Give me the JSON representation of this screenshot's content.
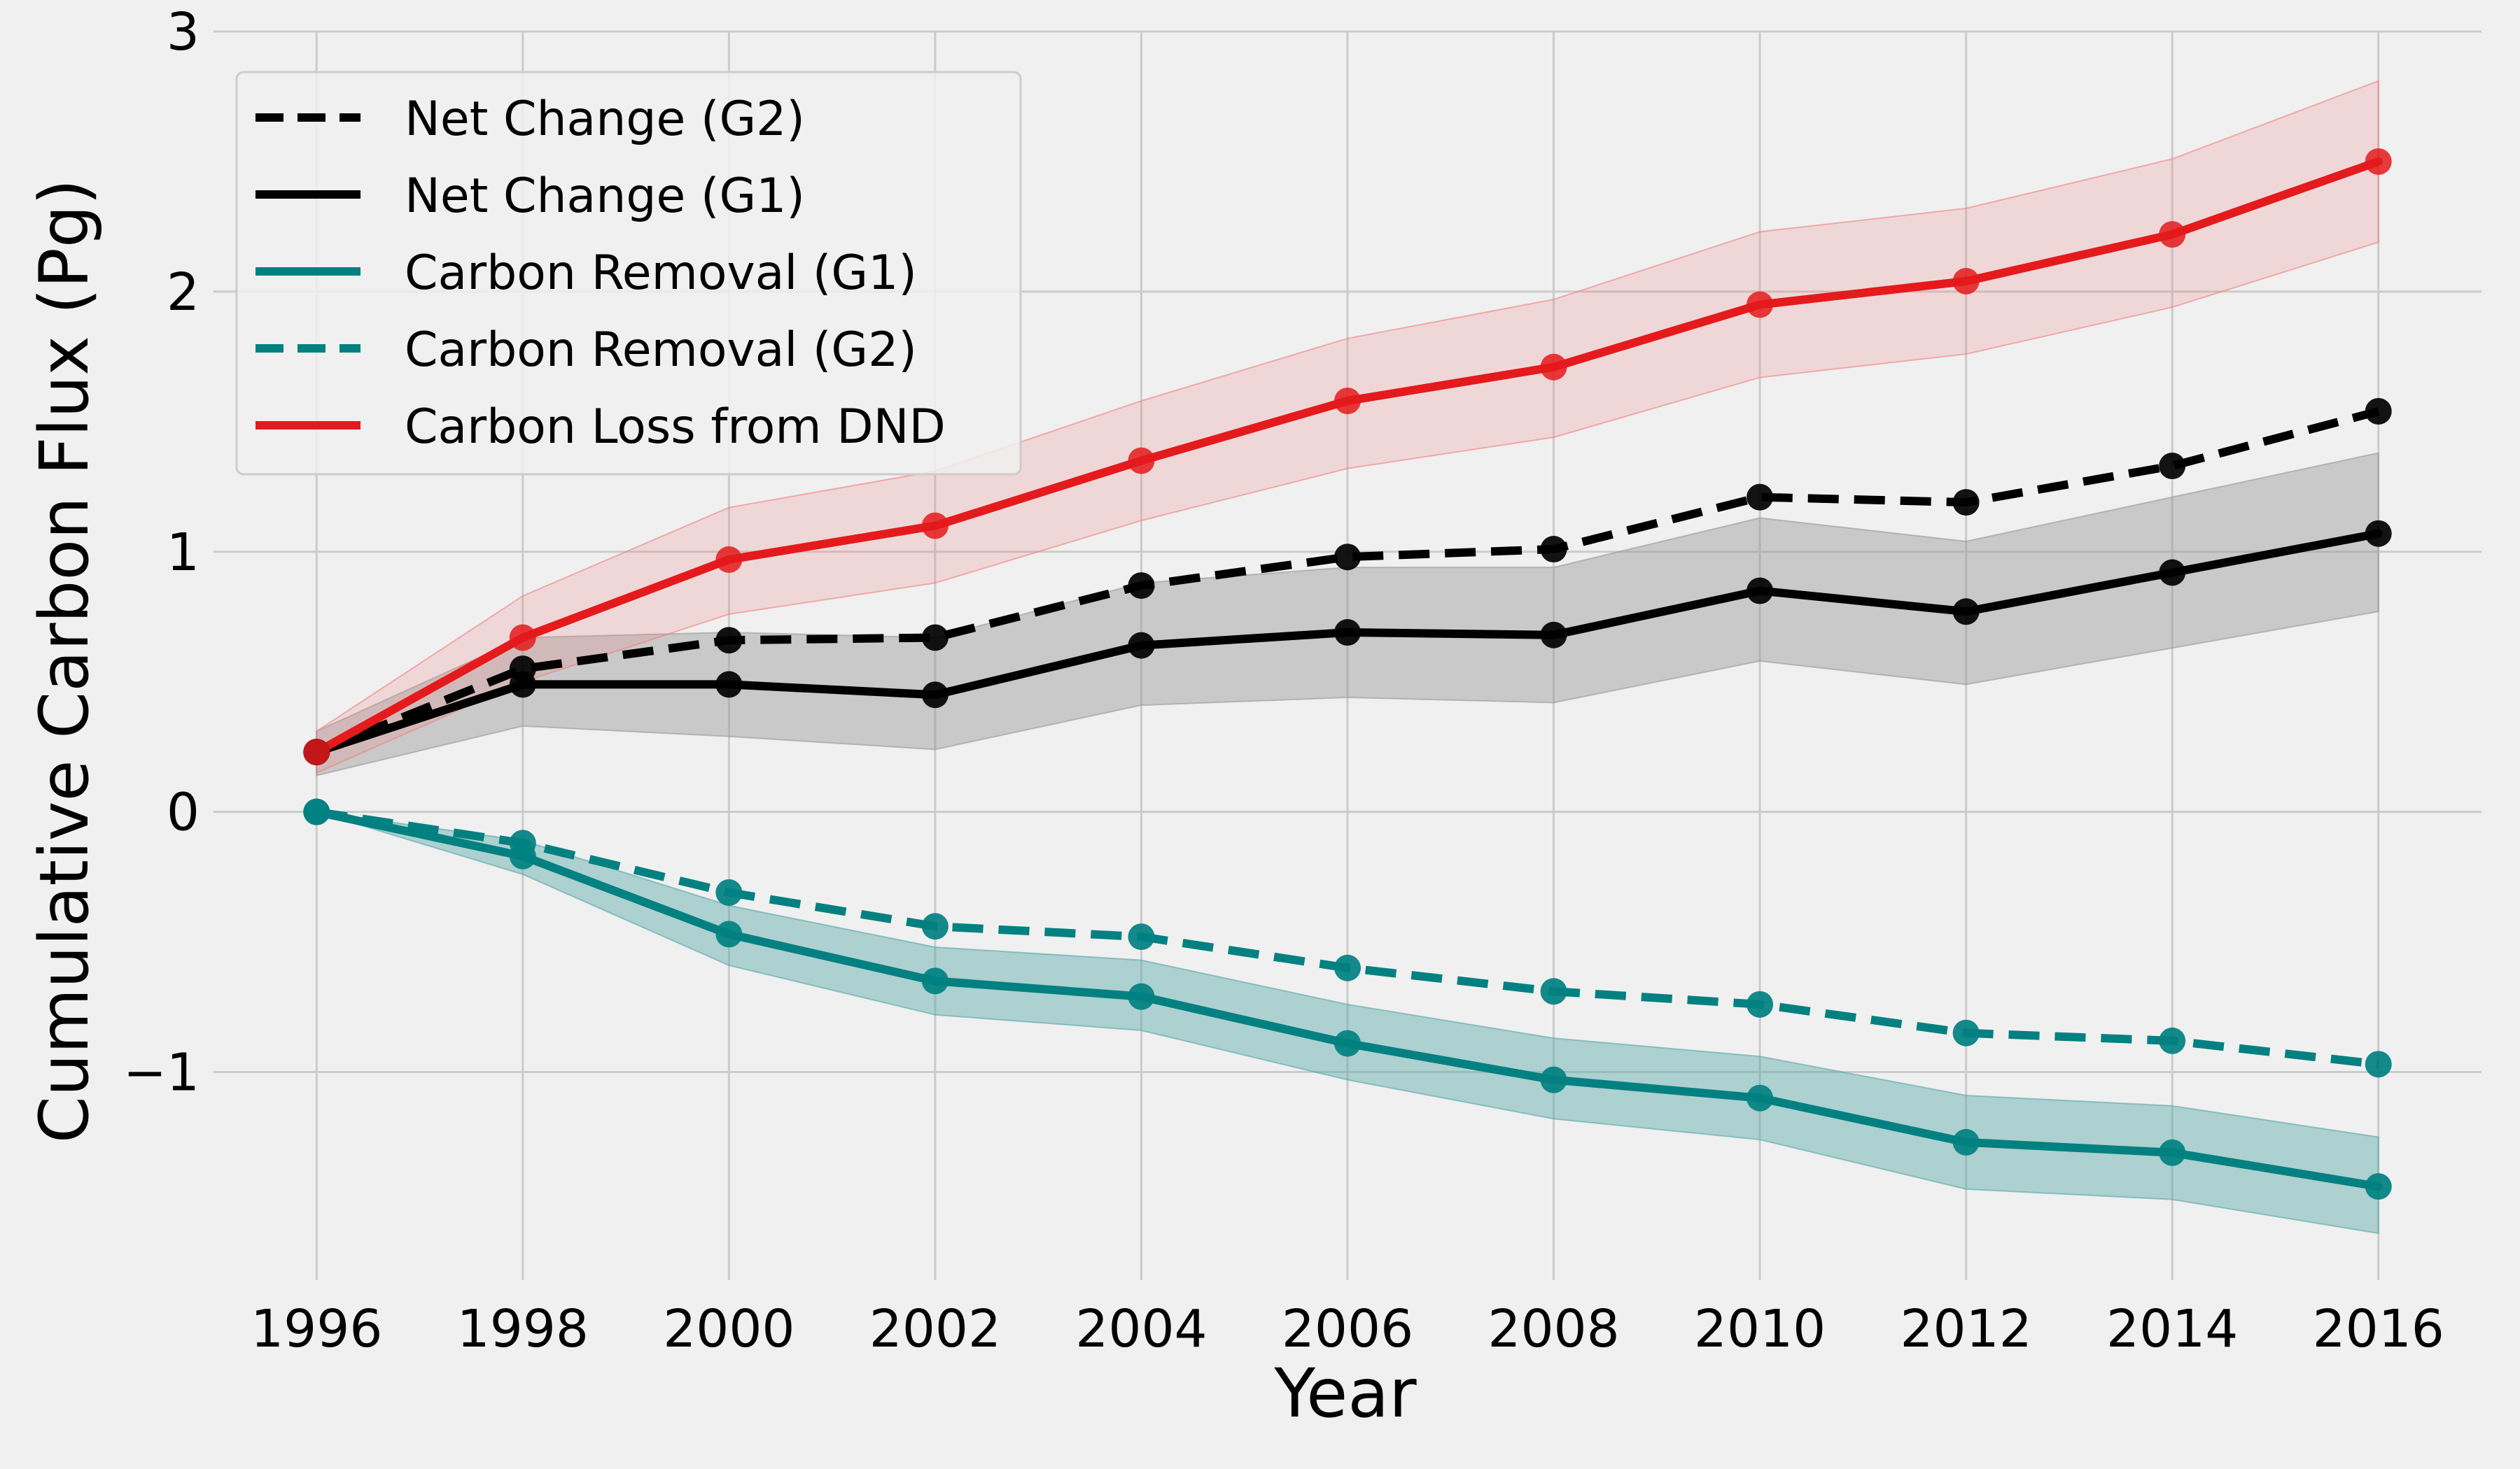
{
  "chart_data": {
    "type": "line",
    "xlabel": "Year",
    "ylabel": "Cumulative Carbon Flux (Pg)",
    "xlim": [
      1995,
      2017
    ],
    "ylim": [
      -1.8,
      3.0
    ],
    "grid": true,
    "legend_position": "top-left",
    "x_ticks": [
      1996,
      1998,
      2000,
      2002,
      2004,
      2006,
      2008,
      2010,
      2012,
      2014,
      2016
    ],
    "x_tick_labels": [
      "1996",
      "1998",
      "2000",
      "2002",
      "2004",
      "2006",
      "2008",
      "2010",
      "2012",
      "2014",
      "2016"
    ],
    "y_ticks": [
      -1,
      0,
      1,
      2,
      3
    ],
    "y_tick_labels": [
      "−1",
      "0",
      "1",
      "2",
      "3"
    ],
    "x": [
      1996,
      1998,
      2000,
      2002,
      2004,
      2006,
      2008,
      2010,
      2012,
      2014,
      2016
    ],
    "series": [
      {
        "name": "Net Change (G2)",
        "color": "#000000",
        "dashed": true,
        "values": [
          0.23,
          0.55,
          0.66,
          0.67,
          0.87,
          0.98,
          1.01,
          1.21,
          1.19,
          1.33,
          1.54
        ]
      },
      {
        "name": "Net Change (G1)",
        "color": "#000000",
        "dashed": false,
        "values": [
          0.23,
          0.49,
          0.49,
          0.45,
          0.64,
          0.69,
          0.68,
          0.85,
          0.77,
          0.92,
          1.07
        ],
        "band_lower": [
          0.14,
          0.33,
          0.29,
          0.24,
          0.41,
          0.44,
          0.42,
          0.58,
          0.49,
          0.63,
          0.77
        ],
        "band_upper": [
          0.31,
          0.67,
          0.69,
          0.67,
          0.88,
          0.94,
          0.94,
          1.13,
          1.04,
          1.21,
          1.38
        ],
        "band_color": "#9a9a9a"
      },
      {
        "name": "Carbon Removal (G1)",
        "color": "#008080",
        "dashed": false,
        "values": [
          0.0,
          -0.17,
          -0.47,
          -0.65,
          -0.71,
          -0.89,
          -1.03,
          -1.1,
          -1.27,
          -1.31,
          -1.44
        ],
        "band_lower": [
          0.0,
          -0.24,
          -0.59,
          -0.78,
          -0.84,
          -1.03,
          -1.18,
          -1.26,
          -1.45,
          -1.49,
          -1.62
        ],
        "band_upper": [
          0.0,
          -0.11,
          -0.36,
          -0.52,
          -0.57,
          -0.74,
          -0.87,
          -0.94,
          -1.09,
          -1.13,
          -1.25
        ],
        "band_color": "#5aa9a9"
      },
      {
        "name": "Carbon Removal (G2)",
        "color": "#008080",
        "dashed": true,
        "values": [
          0.0,
          -0.12,
          -0.31,
          -0.44,
          -0.48,
          -0.6,
          -0.69,
          -0.74,
          -0.85,
          -0.88,
          -0.97
        ]
      },
      {
        "name": "Carbon Loss from DND",
        "color": "#e41a1c",
        "dashed": false,
        "values": [
          0.23,
          0.67,
          0.97,
          1.1,
          1.35,
          1.58,
          1.71,
          1.95,
          2.04,
          2.22,
          2.5
        ],
        "band_lower": [
          0.15,
          0.5,
          0.76,
          0.88,
          1.12,
          1.32,
          1.44,
          1.67,
          1.76,
          1.94,
          2.19
        ],
        "band_upper": [
          0.31,
          0.83,
          1.17,
          1.31,
          1.58,
          1.82,
          1.97,
          2.23,
          2.32,
          2.51,
          2.81
        ],
        "band_color": "#f08080"
      }
    ]
  }
}
